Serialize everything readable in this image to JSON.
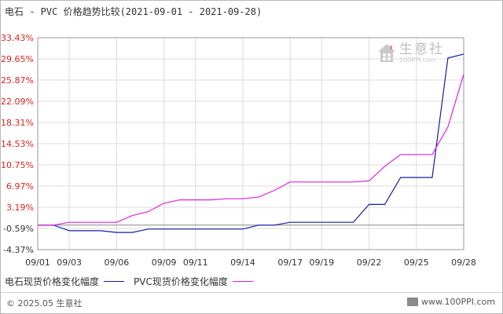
{
  "header": {
    "title": "电石 - PVC 价格趋势比较(2021-09-01 - 2021-09-28)"
  },
  "watermark": {
    "name": "生意社",
    "url": "100PPI.com"
  },
  "legend": {
    "items": [
      {
        "label": "电石现货价格变化幅度",
        "color": "#1a1aa8"
      },
      {
        "label": "PVC现货价格变化幅度",
        "color": "#e020e0"
      }
    ]
  },
  "footer": {
    "left": "© 2025.05 生意社",
    "right": "www.100PPI.com"
  },
  "chart_data": {
    "type": "line",
    "title": "电石 - PVC 价格趋势比较(2021-09-01 - 2021-09-28)",
    "xlabel": "",
    "ylabel": "",
    "x_ticks": [
      "09/01",
      "09/03",
      "09/06",
      "09/09",
      "09/11",
      "09/14",
      "09/17",
      "09/19",
      "09/22",
      "09/25",
      "09/28"
    ],
    "y_ticks": [
      "33.43%",
      "29.65%",
      "25.87%",
      "22.09%",
      "18.31%",
      "14.53%",
      "10.75%",
      "6.97%",
      "3.19%",
      "-0.59%",
      "-4.37%"
    ],
    "ylim": [
      -4.37,
      33.43
    ],
    "xlim": [
      "2021-09-01",
      "2021-09-28"
    ],
    "grid": true,
    "legend_position": "bottom",
    "series": [
      {
        "name": "电石现货价格变化幅度",
        "color": "#1a1aa8",
        "points": [
          [
            "2021-09-01",
            0.0
          ],
          [
            "2021-09-02",
            0.0
          ],
          [
            "2021-09-03",
            -1.0
          ],
          [
            "2021-09-04",
            -1.0
          ],
          [
            "2021-09-05",
            -1.0
          ],
          [
            "2021-09-06",
            -1.3
          ],
          [
            "2021-09-07",
            -1.3
          ],
          [
            "2021-09-08",
            -0.7
          ],
          [
            "2021-09-09",
            -0.7
          ],
          [
            "2021-09-10",
            -0.7
          ],
          [
            "2021-09-11",
            -0.7
          ],
          [
            "2021-09-12",
            -0.7
          ],
          [
            "2021-09-13",
            -0.7
          ],
          [
            "2021-09-14",
            -0.7
          ],
          [
            "2021-09-15",
            0.0
          ],
          [
            "2021-09-16",
            0.0
          ],
          [
            "2021-09-17",
            0.5
          ],
          [
            "2021-09-18",
            0.5
          ],
          [
            "2021-09-19",
            0.5
          ],
          [
            "2021-09-20",
            0.5
          ],
          [
            "2021-09-21",
            0.5
          ],
          [
            "2021-09-22",
            3.7
          ],
          [
            "2021-09-23",
            3.7
          ],
          [
            "2021-09-24",
            8.5
          ],
          [
            "2021-09-25",
            8.5
          ],
          [
            "2021-09-26",
            8.5
          ],
          [
            "2021-09-27",
            29.8
          ],
          [
            "2021-09-28",
            30.5
          ]
        ]
      },
      {
        "name": "PVC现货价格变化幅度",
        "color": "#e020e0",
        "points": [
          [
            "2021-09-01",
            0.0
          ],
          [
            "2021-09-02",
            0.0
          ],
          [
            "2021-09-03",
            0.5
          ],
          [
            "2021-09-04",
            0.5
          ],
          [
            "2021-09-05",
            0.5
          ],
          [
            "2021-09-06",
            0.5
          ],
          [
            "2021-09-07",
            1.7
          ],
          [
            "2021-09-08",
            2.4
          ],
          [
            "2021-09-09",
            3.9
          ],
          [
            "2021-09-10",
            4.5
          ],
          [
            "2021-09-11",
            4.5
          ],
          [
            "2021-09-12",
            4.5
          ],
          [
            "2021-09-13",
            4.7
          ],
          [
            "2021-09-14",
            4.7
          ],
          [
            "2021-09-15",
            5.0
          ],
          [
            "2021-09-16",
            6.2
          ],
          [
            "2021-09-17",
            7.7
          ],
          [
            "2021-09-18",
            7.7
          ],
          [
            "2021-09-19",
            7.7
          ],
          [
            "2021-09-20",
            7.7
          ],
          [
            "2021-09-21",
            7.7
          ],
          [
            "2021-09-22",
            7.9
          ],
          [
            "2021-09-23",
            10.5
          ],
          [
            "2021-09-24",
            12.6
          ],
          [
            "2021-09-25",
            12.6
          ],
          [
            "2021-09-26",
            12.6
          ],
          [
            "2021-09-27",
            17.5
          ],
          [
            "2021-09-28",
            26.9
          ]
        ]
      }
    ]
  }
}
